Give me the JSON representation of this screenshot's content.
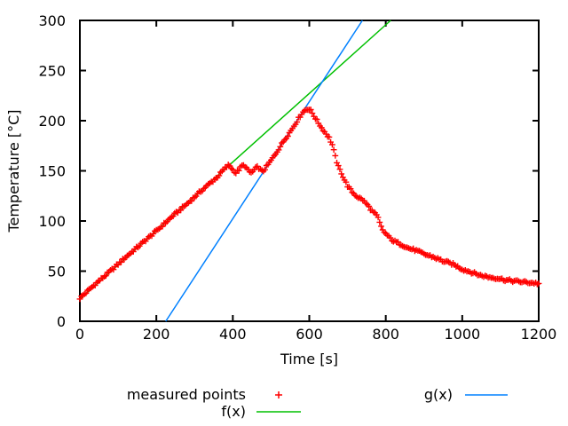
{
  "figure": {
    "background": "#ffffff",
    "axis_color": "#000000"
  },
  "chart_data": {
    "type": "scatter",
    "title": "",
    "xlabel": "Time [s]",
    "ylabel": "Temperature [°C]",
    "xlim": [
      0,
      1200
    ],
    "ylim": [
      0,
      300
    ],
    "xticks": [
      0,
      200,
      400,
      600,
      800,
      1000,
      1200
    ],
    "yticks": [
      0,
      50,
      100,
      150,
      200,
      250,
      300
    ],
    "grid": false,
    "tick_style": "inward-mirrored",
    "legend_position": "below-plot-centered",
    "series": [
      {
        "name": "measured points",
        "type": "scatter",
        "marker": "plus",
        "color": "#ff0000",
        "sample_step_s": 4,
        "noise_amplitude_c": 1.3,
        "anchor_points": [
          [
            0,
            23
          ],
          [
            40,
            37
          ],
          [
            80,
            50
          ],
          [
            120,
            64
          ],
          [
            160,
            77
          ],
          [
            200,
            90
          ],
          [
            240,
            104
          ],
          [
            280,
            117
          ],
          [
            320,
            131
          ],
          [
            360,
            144
          ],
          [
            378,
            152
          ],
          [
            390,
            156
          ],
          [
            400,
            151
          ],
          [
            408,
            148
          ],
          [
            416,
            151
          ],
          [
            424,
            155
          ],
          [
            432,
            155
          ],
          [
            442,
            149
          ],
          [
            450,
            148
          ],
          [
            458,
            152
          ],
          [
            466,
            154
          ],
          [
            472,
            151
          ],
          [
            478,
            149
          ],
          [
            490,
            155
          ],
          [
            505,
            163
          ],
          [
            520,
            172
          ],
          [
            535,
            181
          ],
          [
            550,
            189
          ],
          [
            565,
            198
          ],
          [
            580,
            207
          ],
          [
            590,
            211
          ],
          [
            597,
            212
          ],
          [
            604,
            210
          ],
          [
            612,
            205
          ],
          [
            622,
            199
          ],
          [
            632,
            193
          ],
          [
            642,
            188
          ],
          [
            652,
            183
          ],
          [
            660,
            176
          ],
          [
            668,
            164
          ],
          [
            676,
            154
          ],
          [
            684,
            148
          ],
          [
            692,
            141
          ],
          [
            700,
            135
          ],
          [
            712,
            129
          ],
          [
            726,
            124
          ],
          [
            740,
            121
          ],
          [
            752,
            116
          ],
          [
            764,
            110
          ],
          [
            772,
            107
          ],
          [
            779,
            104
          ],
          [
            785,
            97
          ],
          [
            790,
            92
          ],
          [
            798,
            88
          ],
          [
            808,
            84
          ],
          [
            820,
            80
          ],
          [
            832,
            78
          ],
          [
            845,
            76
          ],
          [
            858,
            73
          ],
          [
            876,
            71
          ],
          [
            900,
            67
          ],
          [
            925,
            64
          ],
          [
            950,
            60
          ],
          [
            975,
            57
          ],
          [
            1000,
            52
          ],
          [
            1023,
            49
          ],
          [
            1045,
            46
          ],
          [
            1070,
            44
          ],
          [
            1092,
            43
          ],
          [
            1115,
            41
          ],
          [
            1138,
            40
          ],
          [
            1165,
            39
          ],
          [
            1192,
            38
          ],
          [
            1200,
            37.5
          ]
        ]
      },
      {
        "name": "f(x)",
        "type": "line",
        "color": "#00c000",
        "slope": 0.342,
        "intercept": 22
      },
      {
        "name": "g(x)",
        "type": "line",
        "color": "#0080ff",
        "slope": 0.5833,
        "intercept": -131
      }
    ],
    "legend": {
      "entries": [
        {
          "label": "measured points",
          "color": "#ff0000",
          "sample": "plus"
        },
        {
          "label": "f(x)",
          "color": "#00c000",
          "sample": "line"
        },
        {
          "label": "g(x)",
          "color": "#0080ff",
          "sample": "line"
        }
      ]
    }
  }
}
